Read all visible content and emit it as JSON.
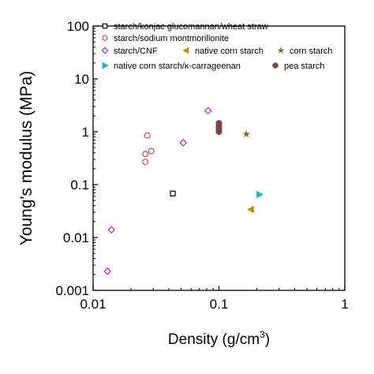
{
  "chart_data": {
    "type": "scatter",
    "x_scale": "log",
    "y_scale": "log",
    "xlim": [
      0.01,
      1
    ],
    "ylim": [
      0.001,
      100
    ],
    "xlabel_main": "Density (g/cm",
    "xlabel_sup": "3",
    "xlabel_end": ")",
    "ylabel": "Young's modulus (MPa)",
    "x_tick_labels": [
      "0.01",
      "0.1",
      "1"
    ],
    "y_tick_labels": [
      "0.001",
      "0.01",
      "0.1",
      "1",
      "10",
      "100"
    ],
    "grid": false,
    "legend_position": "top",
    "series": [
      {
        "name": "starch/konjac glucomannan/wheat straw",
        "marker": "square-open",
        "color": "#000000",
        "points": [
          [
            0.043,
            0.068
          ]
        ]
      },
      {
        "name": "starch/sodium montmorillonite",
        "marker": "circle-open",
        "color": "#c0504d",
        "points": [
          [
            0.026,
            0.27
          ],
          [
            0.026,
            0.38
          ],
          [
            0.029,
            0.43
          ],
          [
            0.027,
            0.85
          ]
        ]
      },
      {
        "name": "starch/CNF",
        "marker": "diamond-open",
        "color": "#9b30d0",
        "points": [
          [
            0.013,
            0.0023
          ],
          [
            0.014,
            0.014
          ],
          [
            0.052,
            0.62
          ],
          [
            0.082,
            2.5
          ]
        ]
      },
      {
        "name": "native corn starch",
        "marker": "triangle-left",
        "color": "#b8960c",
        "points": [
          [
            0.18,
            0.034
          ]
        ]
      },
      {
        "name": "corn starch",
        "marker": "star",
        "color": "#807020",
        "points": [
          [
            0.165,
            0.9
          ]
        ]
      },
      {
        "name": "native corn starch/κ-carrageenan",
        "marker": "triangle-right",
        "color": "#1fb5c8",
        "points": [
          [
            0.21,
            0.065
          ]
        ]
      },
      {
        "name": "pea starch",
        "marker": "circle",
        "color": "#7a4848",
        "points": [
          [
            0.1,
            1.0
          ],
          [
            0.1,
            1.12
          ],
          [
            0.1,
            1.28
          ],
          [
            0.1,
            1.45
          ]
        ]
      }
    ]
  }
}
